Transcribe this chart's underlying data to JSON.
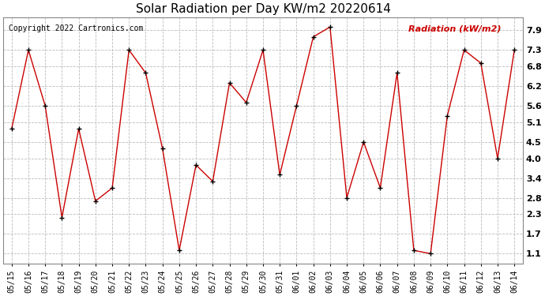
{
  "title": "Solar Radiation per Day KW/m2 20220614",
  "copyright_text": "Copyright 2022 Cartronics.com",
  "legend_text": "Radiation (kW/m2)",
  "dates": [
    "05/15",
    "05/16",
    "05/17",
    "05/18",
    "05/19",
    "05/20",
    "05/21",
    "05/22",
    "05/23",
    "05/24",
    "05/25",
    "05/26",
    "05/27",
    "05/28",
    "05/29",
    "05/30",
    "05/31",
    "06/01",
    "06/02",
    "06/03",
    "06/04",
    "06/05",
    "06/06",
    "06/07",
    "06/08",
    "06/09",
    "06/10",
    "06/11",
    "06/12",
    "06/13",
    "06/14"
  ],
  "values": [
    4.9,
    7.3,
    5.6,
    2.2,
    4.9,
    2.7,
    3.1,
    7.3,
    6.6,
    4.3,
    1.2,
    3.8,
    3.3,
    6.3,
    5.7,
    7.3,
    3.5,
    5.6,
    7.7,
    8.0,
    2.8,
    4.5,
    3.1,
    6.6,
    1.2,
    1.1,
    5.3,
    7.3,
    6.9,
    4.0,
    7.3
  ],
  "line_color": "#cc0000",
  "marker_color": "black",
  "background_color": "#ffffff",
  "grid_color": "#bbbbbb",
  "ylim": [
    0.8,
    8.3
  ],
  "yticks": [
    1.1,
    1.7,
    2.3,
    2.8,
    3.4,
    4.0,
    4.5,
    5.1,
    5.6,
    6.2,
    6.8,
    7.3,
    7.9
  ],
  "title_fontsize": 11,
  "tick_fontsize": 7,
  "copyright_fontsize": 7,
  "legend_fontsize": 8
}
